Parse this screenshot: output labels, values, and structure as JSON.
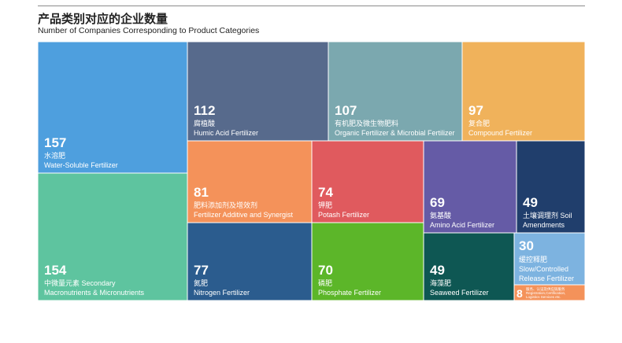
{
  "header": {
    "title": "产品类别对应的企业数量",
    "subtitle": "Number of Companies Corresponding to Product Categories"
  },
  "chart_data": {
    "type": "treemap",
    "title": "产品类别对应的企业数量",
    "subtitle": "Number of Companies Corresponding to Product Categories",
    "items": [
      {
        "value": 157,
        "label_cn": "水溶肥",
        "label_en": "Water-Soluble Fertilizer",
        "color": "#4e9fde"
      },
      {
        "value": 154,
        "label_cn": "中微量元素 Secondary",
        "label_en": "Macronutrients & Micronutrients",
        "color": "#5ec49f"
      },
      {
        "value": 112,
        "label_cn": "腐植酸",
        "label_en": "Humic Acid Fertilizer",
        "color": "#576a8c"
      },
      {
        "value": 107,
        "label_cn": "有机肥及微生物肥料",
        "label_en": "Organic Fertilizer & Microbial Fertilizer",
        "color": "#7ba8af"
      },
      {
        "value": 97,
        "label_cn": "复合肥",
        "label_en": "Compound Fertilizer",
        "color": "#f0b25b"
      },
      {
        "value": 81,
        "label_cn": "肥料添加剂及增效剂",
        "label_en": "Fertilizer Additive and Synergist",
        "color": "#f4925a"
      },
      {
        "value": 74,
        "label_cn": "钾肥",
        "label_en": "Potash Fertilizer",
        "color": "#e05a5e"
      },
      {
        "value": 69,
        "label_cn": "氨基酸",
        "label_en": "Amino Acid Fertilizer",
        "color": "#655ba6"
      },
      {
        "value": 49,
        "label_cn": "土壤调理剂 Soil",
        "label_en": "Amendments",
        "color": "#203e6c"
      },
      {
        "value": 77,
        "label_cn": "氮肥",
        "label_en": "Nitrogen Fertilizer",
        "color": "#2b5c8e"
      },
      {
        "value": 70,
        "label_cn": "磷肥",
        "label_en": "Phosphate Fertilizer",
        "color": "#5cb629"
      },
      {
        "value": 49,
        "label_cn": "海藻肥",
        "label_en": "Seaweed Fertilizer",
        "color": "#0e5753"
      },
      {
        "value": 30,
        "label_cn": "缓控释肥",
        "label_en": "Slow/Controlled",
        "label_en2": "Release Fertilizer",
        "color": "#7db3e0"
      },
      {
        "value": 8,
        "label_cn": "服务、认证及供应链服务",
        "label_en": "Registration,Certification,",
        "label_en2": "Logistics Services etc.",
        "color": "#f4925a"
      }
    ]
  }
}
